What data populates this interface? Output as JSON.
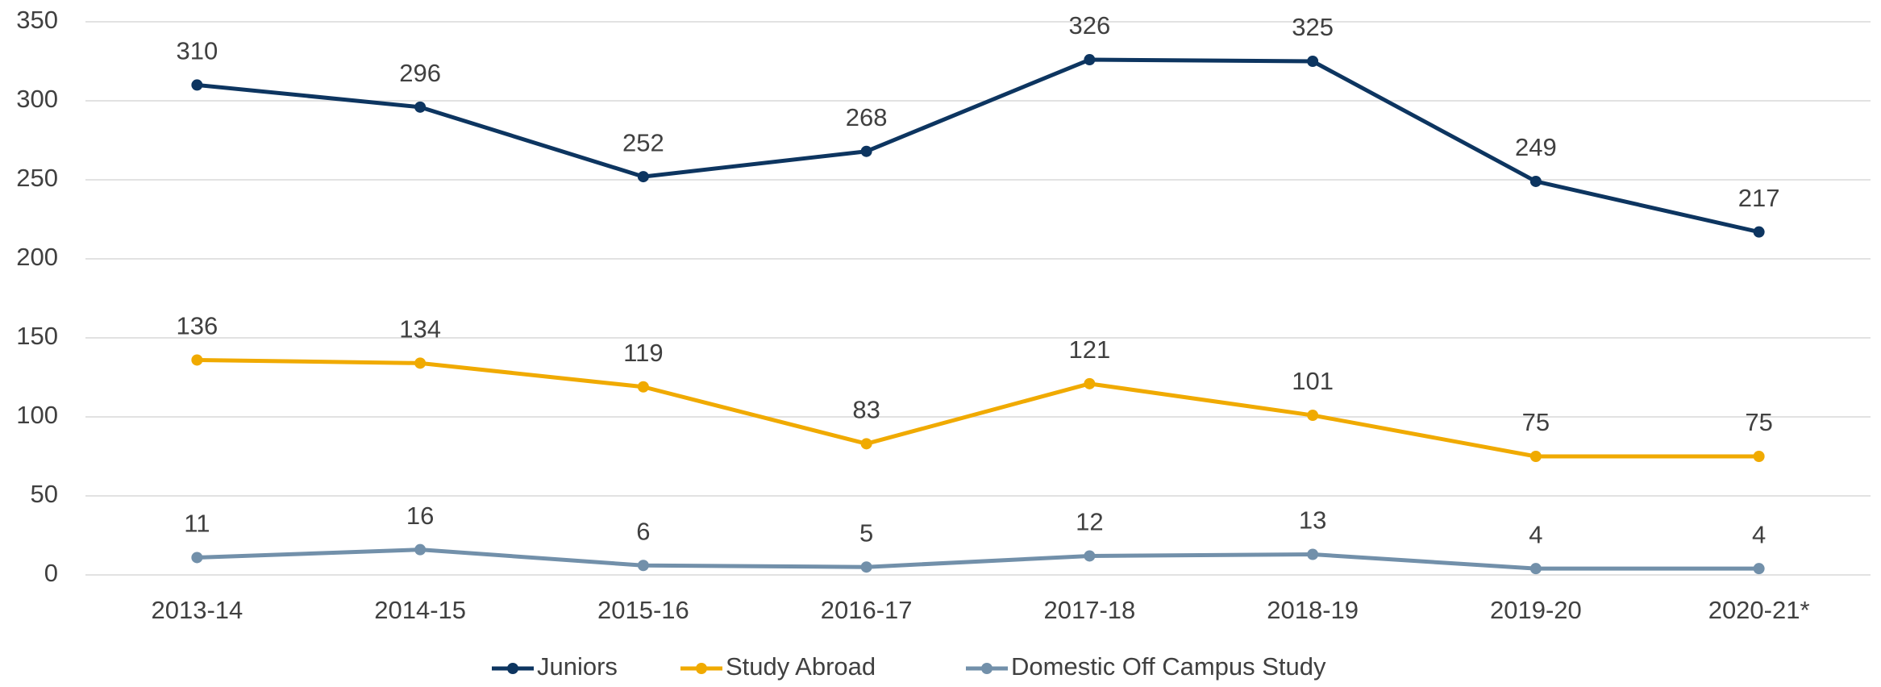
{
  "chart_data": {
    "type": "line",
    "categories": [
      "2013-14",
      "2014-15",
      "2015-16",
      "2016-17",
      "2017-18",
      "2018-19",
      "2019-20",
      "2020-21*"
    ],
    "series": [
      {
        "name": "Juniors",
        "color": "#0d3560",
        "values": [
          310,
          296,
          252,
          268,
          326,
          325,
          249,
          217
        ]
      },
      {
        "name": "Study Abroad",
        "color": "#f0aa00",
        "values": [
          136,
          134,
          119,
          83,
          121,
          101,
          75,
          75
        ]
      },
      {
        "name": "Domestic Off Campus Study",
        "color": "#7290aa",
        "values": [
          11,
          16,
          6,
          5,
          12,
          13,
          4,
          4
        ]
      }
    ],
    "ylim": [
      0,
      350
    ],
    "yticks": [
      0,
      50,
      100,
      150,
      200,
      250,
      300,
      350
    ],
    "grid": true,
    "legend": "bottom",
    "data_labels": true
  }
}
